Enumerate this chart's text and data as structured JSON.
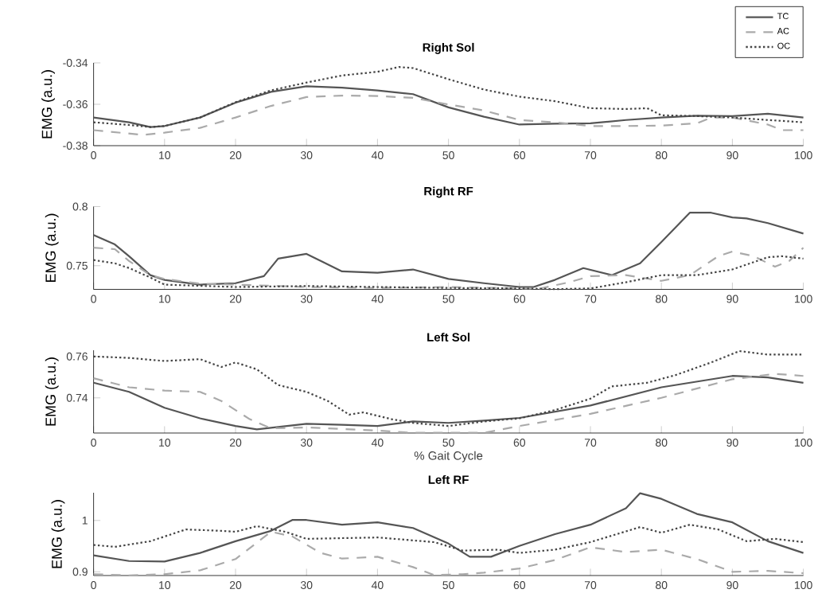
{
  "chart_data": [
    {
      "type": "line",
      "title": "Right Sol",
      "ylabel": "EMG (a.u.)",
      "xlim": [
        0,
        100
      ],
      "ylim": [
        -0.38,
        -0.34
      ],
      "xticks": [
        0,
        10,
        20,
        30,
        40,
        50,
        60,
        70,
        80,
        90,
        100
      ],
      "yticks": [
        -0.38,
        -0.36,
        -0.34
      ],
      "legend": "top right",
      "series": [
        {
          "name": "TC",
          "color": "#555555",
          "line_style": "solid",
          "x": [
            0,
            5,
            8,
            10,
            15,
            20,
            25,
            30,
            35,
            40,
            45,
            50,
            55,
            60,
            65,
            70,
            75,
            80,
            85,
            90,
            95,
            100
          ],
          "values": [
            -0.3664,
            -0.3687,
            -0.371,
            -0.3705,
            -0.3664,
            -0.3592,
            -0.354,
            -0.3513,
            -0.352,
            -0.3533,
            -0.3551,
            -0.3615,
            -0.366,
            -0.3698,
            -0.3694,
            -0.3692,
            -0.3676,
            -0.3664,
            -0.3655,
            -0.3657,
            -0.3646,
            -0.3664
          ]
        },
        {
          "name": "AC",
          "color": "#aaaaaa",
          "line_style": "dashed",
          "x": [
            0,
            7,
            10,
            15,
            20,
            25,
            30,
            35,
            40,
            45,
            50,
            55,
            60,
            65,
            70,
            75,
            80,
            85,
            87,
            90,
            95,
            97,
            100
          ],
          "values": [
            -0.3725,
            -0.3748,
            -0.3737,
            -0.3714,
            -0.3664,
            -0.3608,
            -0.3565,
            -0.3558,
            -0.356,
            -0.3569,
            -0.3601,
            -0.363,
            -0.3676,
            -0.3687,
            -0.3705,
            -0.3705,
            -0.3703,
            -0.3692,
            -0.3664,
            -0.3664,
            -0.3698,
            -0.3725,
            -0.3725
          ]
        },
        {
          "name": "OC",
          "color": "#444444",
          "line_style": "dotted",
          "x": [
            0,
            5,
            8,
            10,
            15,
            20,
            25,
            30,
            35,
            40,
            43,
            45,
            50,
            55,
            60,
            65,
            70,
            75,
            78,
            80,
            85,
            90,
            95,
            100
          ],
          "values": [
            -0.3687,
            -0.37,
            -0.371,
            -0.3705,
            -0.3664,
            -0.359,
            -0.3533,
            -0.3495,
            -0.3461,
            -0.3443,
            -0.342,
            -0.3425,
            -0.3479,
            -0.3529,
            -0.3563,
            -0.3585,
            -0.3619,
            -0.3623,
            -0.3619,
            -0.3653,
            -0.3657,
            -0.3664,
            -0.3676,
            -0.3687
          ]
        }
      ]
    },
    {
      "type": "line",
      "title": "Right RF",
      "ylabel": "EMG (a.u.)",
      "xlim": [
        0,
        100
      ],
      "ylim": [
        0.73,
        0.8
      ],
      "xticks": [
        0,
        10,
        20,
        30,
        40,
        50,
        60,
        70,
        80,
        90,
        100
      ],
      "yticks": [
        0.75,
        0.8
      ],
      "series": [
        {
          "color": "#555555",
          "line_style": "solid",
          "x": [
            0,
            3,
            5,
            8,
            10,
            15,
            20,
            24,
            26,
            30,
            32,
            35,
            40,
            45,
            50,
            55,
            60,
            62,
            65,
            69,
            73,
            77,
            80,
            84,
            87,
            90,
            92,
            95,
            100
          ],
          "values": [
            0.776,
            0.768,
            0.758,
            0.742,
            0.738,
            0.734,
            0.7352,
            0.7412,
            0.756,
            0.76,
            0.754,
            0.7452,
            0.744,
            0.7468,
            0.7388,
            0.7352,
            0.732,
            0.732,
            0.738,
            0.748,
            0.742,
            0.752,
            0.77,
            0.7948,
            0.7948,
            0.7908,
            0.79,
            0.786,
            0.7772
          ]
        },
        {
          "color": "#aaaaaa",
          "line_style": "dashed",
          "x": [
            0,
            3,
            5,
            8,
            10,
            15,
            20,
            30,
            40,
            50,
            60,
            63,
            67,
            70,
            75,
            80,
            84,
            88,
            90,
            93,
            96,
            98,
            100
          ],
          "values": [
            0.7652,
            0.764,
            0.754,
            0.742,
            0.7388,
            0.7348,
            0.734,
            0.732,
            0.7312,
            0.732,
            0.7308,
            0.7308,
            0.736,
            0.7412,
            0.742,
            0.7372,
            0.742,
            0.758,
            0.762,
            0.758,
            0.7492,
            0.754,
            0.7652
          ]
        },
        {
          "color": "#444444",
          "line_style": "dotted",
          "x": [
            0,
            3,
            5,
            8,
            10,
            20,
            30,
            40,
            50,
            60,
            65,
            70,
            75,
            80,
            85,
            90,
            95,
            97,
            100
          ],
          "values": [
            0.7548,
            0.752,
            0.748,
            0.74,
            0.734,
            0.732,
            0.7328,
            0.732,
            0.7312,
            0.7308,
            0.7302,
            0.7308,
            0.736,
            0.742,
            0.742,
            0.7468,
            0.7572,
            0.758,
            0.756
          ]
        }
      ]
    },
    {
      "type": "line",
      "title": "Left Sol",
      "xlabel": "% Gait Cycle",
      "ylabel": "EMG (a.u.)",
      "xlim": [
        0,
        100
      ],
      "ylim": [
        0.723,
        0.763
      ],
      "xticks": [
        0,
        10,
        20,
        30,
        40,
        50,
        60,
        70,
        80,
        90,
        100
      ],
      "yticks": [
        0.74,
        0.76
      ],
      "series": [
        {
          "color": "#555555",
          "line_style": "solid",
          "x": [
            0,
            5,
            10,
            15,
            20,
            23,
            30,
            35,
            40,
            45,
            50,
            55,
            60,
            70,
            80,
            90,
            95,
            100
          ],
          "values": [
            0.7473,
            0.7429,
            0.7352,
            0.7301,
            0.7264,
            0.7248,
            0.7275,
            0.727,
            0.7264,
            0.7286,
            0.7279,
            0.729,
            0.7303,
            0.7363,
            0.7451,
            0.7506,
            0.7499,
            0.7473
          ]
        },
        {
          "color": "#aaaaaa",
          "line_style": "dashed",
          "x": [
            0,
            5,
            10,
            15,
            18,
            22,
            25,
            30,
            40,
            45,
            55,
            60,
            70,
            80,
            90,
            96,
            100
          ],
          "values": [
            0.7495,
            0.7451,
            0.7435,
            0.7429,
            0.7385,
            0.7297,
            0.7253,
            0.7257,
            0.7242,
            0.7231,
            0.7231,
            0.7264,
            0.7323,
            0.74,
            0.749,
            0.7516,
            0.7506
          ]
        },
        {
          "color": "#444444",
          "line_style": "dotted",
          "x": [
            0,
            5,
            10,
            15,
            18,
            20,
            23,
            26,
            30,
            33,
            36,
            38,
            42,
            45,
            50,
            55,
            60,
            65,
            70,
            73,
            78,
            82,
            87,
            91,
            95,
            100
          ],
          "values": [
            0.76,
            0.7593,
            0.7578,
            0.7587,
            0.7549,
            0.7571,
            0.7538,
            0.7462,
            0.7429,
            0.7385,
            0.7319,
            0.733,
            0.7297,
            0.7279,
            0.7264,
            0.7286,
            0.7301,
            0.7341,
            0.7396,
            0.7455,
            0.7473,
            0.751,
            0.7571,
            0.7626,
            0.7609,
            0.7609
          ]
        }
      ]
    },
    {
      "type": "line",
      "title": "Left RF",
      "ylabel": "EMG (a.u.)",
      "xlim": [
        0,
        100
      ],
      "ylim": [
        0.8927,
        1.054
      ],
      "xticks": [
        0,
        10,
        20,
        30,
        40,
        50,
        60,
        70,
        80,
        90,
        100
      ],
      "yticks": [
        0.9,
        1
      ],
      "series": [
        {
          "color": "#555555",
          "line_style": "solid",
          "x": [
            0,
            5,
            10,
            15,
            20,
            25,
            28,
            30,
            35,
            40,
            45,
            50,
            53,
            56,
            60,
            65,
            70,
            75,
            77,
            80,
            85,
            90,
            95,
            100
          ],
          "values": [
            0.932,
            0.921,
            0.92,
            0.9367,
            0.9596,
            0.9798,
            1.0009,
            1.0009,
            0.9917,
            0.9963,
            0.9853,
            0.955,
            0.9293,
            0.9293,
            0.9504,
            0.9734,
            0.9917,
            1.0238,
            1.0531,
            1.0421,
            1.0128,
            0.9963,
            0.9596,
            0.9367
          ]
        },
        {
          "color": "#aaaaaa",
          "line_style": "dashed",
          "x": [
            0,
            5,
            10,
            15,
            20,
            25,
            28,
            32,
            35,
            40,
            45,
            48,
            52,
            55,
            60,
            65,
            70,
            75,
            80,
            85,
            90,
            95,
            100
          ],
          "values": [
            0.8954,
            0.893,
            0.8954,
            0.9028,
            0.9248,
            0.978,
            0.9688,
            0.9367,
            0.9257,
            0.9293,
            0.9092,
            0.8936,
            0.8954,
            0.8982,
            0.9064,
            0.9229,
            0.9477,
            0.9385,
            0.9431,
            0.9248,
            0.9,
            0.9018,
            0.8972
          ]
        },
        {
          "color": "#444444",
          "line_style": "dotted",
          "x": [
            0,
            3,
            8,
            13,
            18,
            20,
            23,
            27,
            30,
            40,
            48,
            52,
            57,
            60,
            65,
            70,
            77,
            80,
            84,
            88,
            92,
            96,
            100
          ],
          "values": [
            0.9523,
            0.9486,
            0.9596,
            0.9825,
            0.9798,
            0.978,
            0.9889,
            0.978,
            0.9642,
            0.9669,
            0.9578,
            0.9413,
            0.9431,
            0.9367,
            0.9431,
            0.9578,
            0.9871,
            0.9761,
            0.9917,
            0.9825,
            0.9596,
            0.9642,
            0.9578
          ]
        }
      ]
    }
  ]
}
